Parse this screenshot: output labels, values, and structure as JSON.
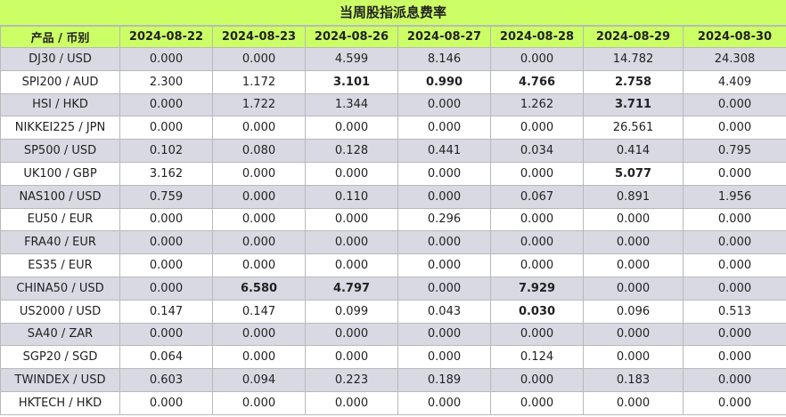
{
  "title": "当周股指派息费率",
  "header": {
    "product": "产品 / 币别",
    "dates": [
      "2024-08-22",
      "2024-08-23",
      "2024-08-26",
      "2024-08-27",
      "2024-08-28",
      "2024-08-29",
      "2024-08-30"
    ]
  },
  "rows": [
    {
      "product": "DJ30 / USD",
      "values": [
        "0.000",
        "0.000",
        "4.599",
        "8.146",
        "0.000",
        "14.782",
        "24.308"
      ],
      "bold": [
        false,
        false,
        false,
        false,
        false,
        false,
        false
      ]
    },
    {
      "product": "SPI200 / AUD",
      "values": [
        "2.300",
        "1.172",
        "3.101",
        "0.990",
        "4.766",
        "2.758",
        "4.409"
      ],
      "bold": [
        false,
        false,
        true,
        true,
        true,
        true,
        false
      ]
    },
    {
      "product": "HSI / HKD",
      "values": [
        "0.000",
        "1.722",
        "1.344",
        "0.000",
        "1.262",
        "3.711",
        "0.000"
      ],
      "bold": [
        false,
        false,
        false,
        false,
        false,
        true,
        false
      ]
    },
    {
      "product": "NIKKEI225 / JPN",
      "values": [
        "0.000",
        "0.000",
        "0.000",
        "0.000",
        "0.000",
        "26.561",
        "0.000"
      ],
      "bold": [
        false,
        false,
        false,
        false,
        false,
        false,
        false
      ]
    },
    {
      "product": "SP500 / USD",
      "values": [
        "0.102",
        "0.080",
        "0.128",
        "0.441",
        "0.034",
        "0.414",
        "0.795"
      ],
      "bold": [
        false,
        false,
        false,
        false,
        false,
        false,
        false
      ]
    },
    {
      "product": "UK100 / GBP",
      "values": [
        "3.162",
        "0.000",
        "0.000",
        "0.000",
        "0.000",
        "5.077",
        "0.000"
      ],
      "bold": [
        false,
        false,
        false,
        false,
        false,
        true,
        false
      ]
    },
    {
      "product": "NAS100 / USD",
      "values": [
        "0.759",
        "0.000",
        "0.110",
        "0.000",
        "0.067",
        "0.891",
        "1.956"
      ],
      "bold": [
        false,
        false,
        false,
        false,
        false,
        false,
        false
      ]
    },
    {
      "product": "EU50 / EUR",
      "values": [
        "0.000",
        "0.000",
        "0.000",
        "0.296",
        "0.000",
        "0.000",
        "0.000"
      ],
      "bold": [
        false,
        false,
        false,
        false,
        false,
        false,
        false
      ]
    },
    {
      "product": "FRA40 / EUR",
      "values": [
        "0.000",
        "0.000",
        "0.000",
        "0.000",
        "0.000",
        "0.000",
        "0.000"
      ],
      "bold": [
        false,
        false,
        false,
        false,
        false,
        false,
        false
      ]
    },
    {
      "product": "ES35 / EUR",
      "values": [
        "0.000",
        "0.000",
        "0.000",
        "0.000",
        "0.000",
        "0.000",
        "0.000"
      ],
      "bold": [
        false,
        false,
        false,
        false,
        false,
        false,
        false
      ]
    },
    {
      "product": "CHINA50 / USD",
      "values": [
        "0.000",
        "6.580",
        "4.797",
        "0.000",
        "7.929",
        "0.000",
        "0.000"
      ],
      "bold": [
        false,
        true,
        true,
        false,
        true,
        false,
        false
      ]
    },
    {
      "product": "US2000 / USD",
      "values": [
        "0.147",
        "0.147",
        "0.099",
        "0.043",
        "0.030",
        "0.096",
        "0.513"
      ],
      "bold": [
        false,
        false,
        false,
        false,
        true,
        false,
        false
      ]
    },
    {
      "product": "SA40 / ZAR",
      "values": [
        "0.000",
        "0.000",
        "0.000",
        "0.000",
        "0.000",
        "0.000",
        "0.000"
      ],
      "bold": [
        false,
        false,
        false,
        false,
        false,
        false,
        false
      ]
    },
    {
      "product": "SGP20 / SGD",
      "values": [
        "0.064",
        "0.000",
        "0.000",
        "0.000",
        "0.124",
        "0.000",
        "0.000"
      ],
      "bold": [
        false,
        false,
        false,
        false,
        false,
        false,
        false
      ]
    },
    {
      "product": "TWINDEX / USD",
      "values": [
        "0.603",
        "0.094",
        "0.223",
        "0.189",
        "0.000",
        "0.183",
        "0.000"
      ],
      "bold": [
        false,
        false,
        false,
        false,
        false,
        false,
        false
      ]
    },
    {
      "product": "HKTECH / HKD",
      "values": [
        "0.000",
        "0.000",
        "0.000",
        "0.000",
        "0.000",
        "0.000",
        "0.000"
      ],
      "bold": [
        false,
        false,
        false,
        false,
        false,
        false,
        false
      ]
    }
  ]
}
